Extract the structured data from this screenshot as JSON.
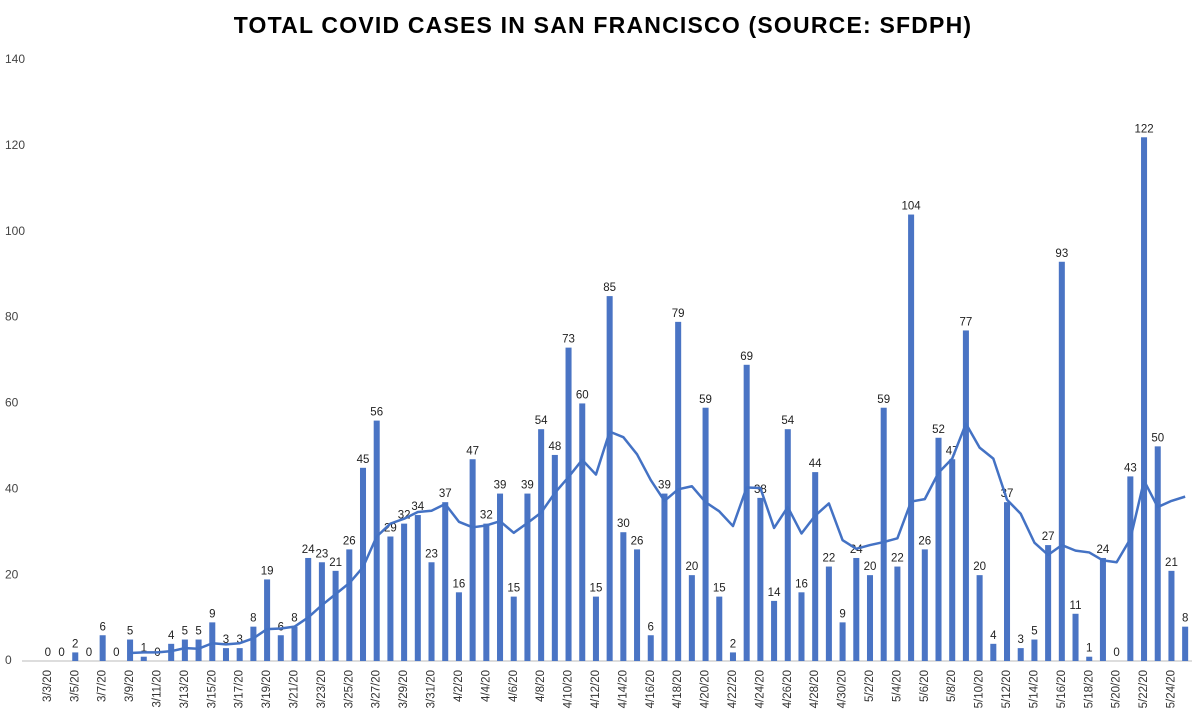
{
  "chart_data": {
    "type": "bar",
    "title": "TOTAL COVID CASES IN SAN FRANCISCO (SOURCE: SFDPH)",
    "categories": [
      "3/3/20",
      null,
      "3/5/20",
      null,
      "3/7/20",
      null,
      "3/9/20",
      null,
      "3/11/20",
      null,
      "3/13/20",
      null,
      "3/15/20",
      null,
      "3/17/20",
      null,
      "3/19/20",
      null,
      "3/21/20",
      null,
      "3/23/20",
      null,
      "3/25/20",
      null,
      "3/27/20",
      null,
      "3/29/20",
      null,
      "3/31/20",
      null,
      "4/2/20",
      null,
      "4/4/20",
      null,
      "4/6/20",
      null,
      "4/8/20",
      null,
      "4/10/20",
      null,
      "4/12/20",
      null,
      "4/14/20",
      null,
      "4/16/20",
      null,
      "4/18/20",
      null,
      "4/20/20",
      null,
      "4/22/20",
      null,
      "4/24/20",
      null,
      "4/26/20",
      null,
      "4/28/20",
      null,
      "4/30/20",
      null,
      "5/2/20",
      null,
      "5/4/20",
      null,
      "5/6/20",
      null,
      "5/8/20",
      null,
      "5/10/20",
      null,
      "5/12/20",
      null,
      "5/14/20",
      null,
      "5/16/20",
      null,
      "5/18/20",
      null,
      "5/20/20",
      null,
      "5/22/20",
      null,
      "5/24/20",
      null
    ],
    "series": [
      {
        "type": "bar",
        "color": "#4a74c4",
        "values": [
          0,
          0,
          2,
          0,
          6,
          0,
          5,
          1,
          0,
          4,
          5,
          5,
          9,
          3,
          3,
          8,
          19,
          6,
          8,
          24,
          23,
          21,
          26,
          45,
          56,
          29,
          32,
          34,
          23,
          37,
          16,
          47,
          32,
          39,
          15,
          39,
          54,
          48,
          73,
          60,
          15,
          85,
          30,
          26,
          6,
          39,
          79,
          20,
          59,
          15,
          2,
          69,
          38,
          14,
          54,
          16,
          44,
          22,
          9,
          24,
          20,
          59,
          22,
          104,
          26,
          52,
          47,
          77,
          20,
          4,
          37,
          3,
          5,
          27,
          93,
          11,
          1,
          24,
          0,
          43,
          122,
          50,
          21,
          8
        ]
      },
      {
        "type": "line",
        "color": "#4472c4",
        "values": [
          null,
          null,
          null,
          null,
          null,
          null,
          1.86,
          2.0,
          2.0,
          2.29,
          3.0,
          2.86,
          4.14,
          3.86,
          4.14,
          5.29,
          7.43,
          7.57,
          8.0,
          10.14,
          13.0,
          15.57,
          18.14,
          21.86,
          29.0,
          32.0,
          33.14,
          34.71,
          35.0,
          36.57,
          32.43,
          31.14,
          31.57,
          32.57,
          29.86,
          32.14,
          34.57,
          39.14,
          42.86,
          46.86,
          43.43,
          53.43,
          52.14,
          48.14,
          42.14,
          37.29,
          40.0,
          40.71,
          37.0,
          34.86,
          31.43,
          40.43,
          40.29,
          31.0,
          35.86,
          29.71,
          33.86,
          36.71,
          28.14,
          26.14,
          27.0,
          27.71,
          28.57,
          37.14,
          37.71,
          43.86,
          47.14,
          55.29,
          49.71,
          47.14,
          37.57,
          34.29,
          27.57,
          24.71,
          27.0,
          25.71,
          25.29,
          23.43,
          23.0,
          28.43,
          42.0,
          35.86,
          37.29,
          38.29
        ]
      }
    ],
    "ylim": [
      0,
      140
    ],
    "yticks": [
      0,
      20,
      40,
      60,
      80,
      100,
      120,
      140
    ],
    "grid": false
  }
}
